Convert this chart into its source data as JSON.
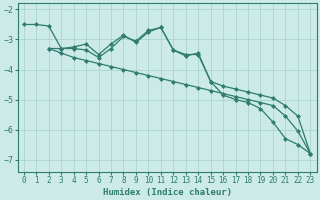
{
  "xlabel": "Humidex (Indice chaleur)",
  "bg_color": "#cceae7",
  "grid_color": "#aad4d0",
  "line_color": "#2e7d6e",
  "xlim": [
    -0.5,
    23.5
  ],
  "ylim": [
    -7.4,
    -1.8
  ],
  "yticks": [
    -7,
    -6,
    -5,
    -4,
    -3,
    -2
  ],
  "xticks": [
    0,
    1,
    2,
    3,
    4,
    5,
    6,
    7,
    8,
    9,
    10,
    11,
    12,
    13,
    14,
    15,
    16,
    17,
    18,
    19,
    20,
    21,
    22,
    23
  ],
  "series": [
    {
      "x": [
        0,
        1,
        2,
        3,
        4,
        5,
        6,
        7,
        8,
        9,
        10,
        11,
        12,
        13,
        14,
        15,
        16,
        17,
        18,
        19,
        20,
        21,
        22,
        23
      ],
      "y": [
        -2.5,
        -2.5,
        -2.55,
        -3.3,
        -3.25,
        -3.15,
        -3.5,
        -3.15,
        -2.85,
        -3.1,
        -2.75,
        -2.6,
        -3.35,
        -3.55,
        -3.45,
        -4.4,
        -4.85,
        -5.0,
        -5.1,
        -5.3,
        -5.75,
        -6.3,
        -6.5,
        -6.8
      ]
    },
    {
      "x": [
        2,
        3,
        4,
        5,
        6,
        7,
        8,
        9,
        10,
        11,
        12,
        13,
        14,
        15,
        16,
        17,
        18,
        19,
        20,
        21,
        22,
        23
      ],
      "y": [
        -3.3,
        -3.3,
        -3.3,
        -3.35,
        -3.6,
        -3.3,
        -2.9,
        -3.05,
        -2.7,
        -2.6,
        -3.35,
        -3.5,
        -3.5,
        -4.4,
        -4.55,
        -4.65,
        -4.75,
        -4.85,
        -4.95,
        -5.2,
        -5.55,
        -6.8
      ]
    },
    {
      "x": [
        2,
        3,
        4,
        5,
        6,
        7,
        8,
        9,
        10,
        11,
        12,
        13,
        14,
        15,
        16,
        17,
        18,
        19,
        20,
        21,
        22,
        23
      ],
      "y": [
        -3.3,
        -3.45,
        -3.6,
        -3.7,
        -3.8,
        -3.9,
        -4.0,
        -4.1,
        -4.2,
        -4.3,
        -4.4,
        -4.5,
        -4.6,
        -4.7,
        -4.8,
        -4.9,
        -5.0,
        -5.1,
        -5.2,
        -5.55,
        -6.05,
        -6.8
      ]
    }
  ]
}
